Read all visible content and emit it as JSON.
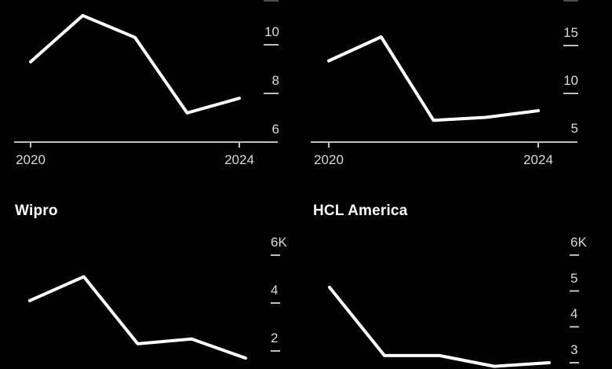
{
  "page": {
    "background": "#000000",
    "series_color": "#ffffff",
    "axis_color": "#c0c0c0",
    "tick_label_color": "#dadada",
    "title_color": "#ffffff",
    "description_visible_titles": [
      "Wipro",
      "HCL America"
    ]
  },
  "chart_data": [
    {
      "id": "top-left",
      "type": "line",
      "title": "",
      "x": [
        2020,
        2021,
        2022,
        2023,
        2024
      ],
      "values": [
        9.3,
        11.2,
        10.3,
        7.2,
        7.8
      ],
      "unit_hint": "thousands",
      "yticks": [
        {
          "label": "10",
          "value": 10
        },
        {
          "label": "8",
          "value": 8
        },
        {
          "label": "6",
          "value": 6
        }
      ],
      "xticks": [
        {
          "label": "2020",
          "value": 2020
        },
        {
          "label": "2024",
          "value": 2024
        }
      ],
      "ylim": [
        5.5,
        12.2
      ],
      "grid": false,
      "legend": false
    },
    {
      "id": "top-right",
      "type": "line",
      "title": "",
      "x": [
        2020,
        2021,
        2022,
        2023,
        2024
      ],
      "values": [
        13.4,
        15.9,
        7.2,
        7.5,
        8.2
      ],
      "unit_hint": "thousands",
      "yticks": [
        {
          "label": "15",
          "value": 15
        },
        {
          "label": "10",
          "value": 10
        },
        {
          "label": "5",
          "value": 5
        }
      ],
      "xticks": [
        {
          "label": "2020",
          "value": 2020
        },
        {
          "label": "2024",
          "value": 2024
        }
      ],
      "ylim": [
        4.9,
        16.2
      ],
      "grid": false,
      "legend": false
    },
    {
      "id": "bottom-left",
      "type": "line",
      "title": "Wipro",
      "x": [
        2020,
        2021,
        2022,
        2023,
        2024
      ],
      "values": [
        4.1,
        5.1,
        2.3,
        2.5,
        1.7
      ],
      "unit_hint": "thousands",
      "yticks": [
        {
          "label": "6K",
          "value": 6
        },
        {
          "label": "4",
          "value": 4
        },
        {
          "label": "2",
          "value": 2
        }
      ],
      "xticks": [],
      "ylim": [
        1.5,
        6.5
      ],
      "grid": false,
      "legend": false
    },
    {
      "id": "bottom-right",
      "type": "line",
      "title": "HCL America",
      "x": [
        2020,
        2021,
        2022,
        2023,
        2024
      ],
      "values": [
        5.1,
        3.2,
        3.2,
        2.9,
        3.0
      ],
      "unit_hint": "thousands",
      "yticks": [
        {
          "label": "6K",
          "value": 6
        },
        {
          "label": "5",
          "value": 5
        },
        {
          "label": "4",
          "value": 4
        },
        {
          "label": "3",
          "value": 3
        }
      ],
      "xticks": [],
      "ylim": [
        2.8,
        6.5
      ],
      "grid": false,
      "legend": false
    }
  ]
}
